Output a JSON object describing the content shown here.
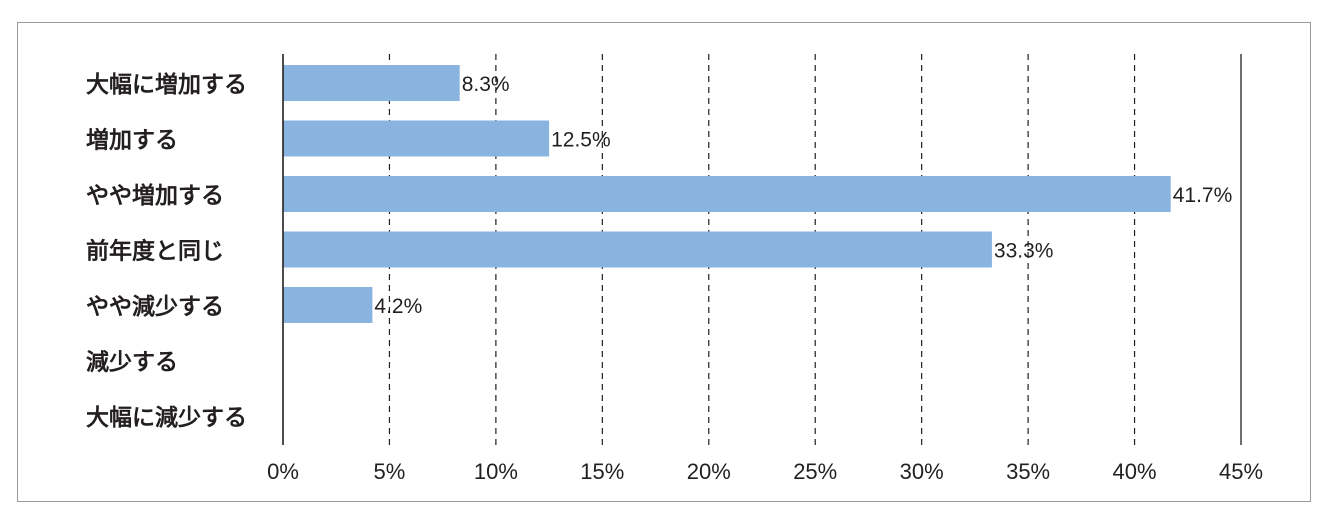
{
  "chart_data": {
    "type": "bar",
    "orientation": "horizontal",
    "categories": [
      "大幅に増加する",
      "増加する",
      "やや増加する",
      "前年度と同じ",
      "やや減少する",
      "減少する",
      "大幅に減少する"
    ],
    "values": [
      8.3,
      12.5,
      41.7,
      33.3,
      4.2,
      null,
      null
    ],
    "value_labels": [
      "8.3%",
      "12.5%",
      "41.7%",
      "33.3%",
      "4.2%",
      "",
      ""
    ],
    "xlim": [
      0,
      45
    ],
    "xticks": [
      0,
      5,
      10,
      15,
      20,
      25,
      30,
      35,
      40,
      45
    ],
    "xtick_labels": [
      "0%",
      "5%",
      "10%",
      "15%",
      "20%",
      "25%",
      "30%",
      "35%",
      "40%",
      "45%"
    ],
    "grid": "vertical dashed",
    "legend": "none",
    "bar_color": "#8ab4e0",
    "title": "",
    "xlabel": "",
    "ylabel": ""
  }
}
